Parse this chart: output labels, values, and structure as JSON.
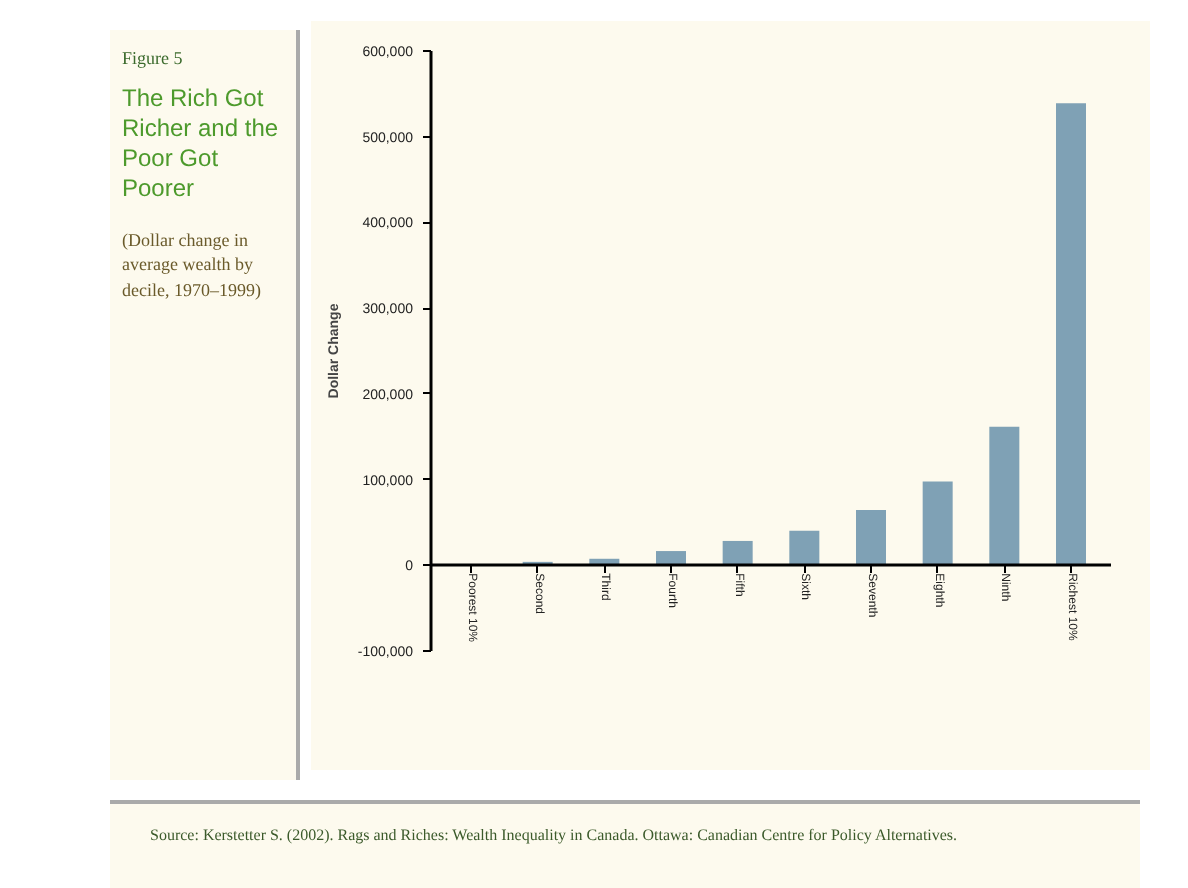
{
  "chart_data": {
    "type": "bar",
    "title": "The Rich Got Richer and the Poor Got Poorer",
    "subtitle": "(Dollar change in average wealth by decile, 1970–1999)",
    "ylabel": "Dollar Change",
    "categories": [
      "Poorest 10%",
      "Second",
      "Third",
      "Fourth",
      "Fifth",
      "Sixth",
      "Seventh",
      "Eighth",
      "Ninth",
      "Richest 10%"
    ],
    "values": [
      0,
      4000,
      7600,
      16600,
      28400,
      40200,
      64500,
      97800,
      161600,
      539000
    ],
    "color": "#7fa1b5",
    "ylim": [
      -100000,
      600000
    ],
    "yticks": [
      {
        "value": -100000,
        "label": "-100,000"
      },
      {
        "value": 0,
        "label": "0"
      },
      {
        "value": 100000,
        "label": "100,000"
      },
      {
        "value": 200000,
        "label": "200,000"
      },
      {
        "value": 300000,
        "label": "300,000"
      },
      {
        "value": 400000,
        "label": "400,000"
      },
      {
        "value": 500000,
        "label": "500,000"
      },
      {
        "value": 600000,
        "label": "600,000"
      }
    ],
    "grid": false,
    "annotations": [
      "Figure 5",
      "Source: Kerstetter S. (2002). Rags and Riches: Wealth Inequality in Canada. Ottawa: Canadian Centre for Policy Alternatives."
    ]
  }
}
